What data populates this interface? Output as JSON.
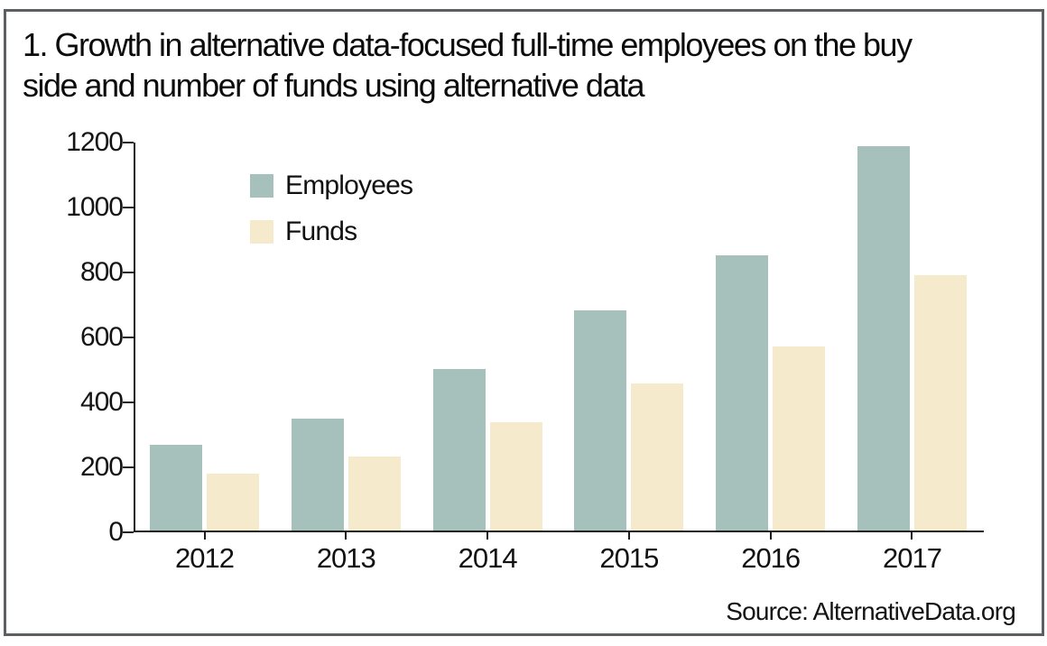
{
  "title": "1. Growth in alternative data-focused full-time employees on the buy side and number of funds using alternative data",
  "source": "Source: AlternativeData.org",
  "colors": {
    "employees": "#a6c1bb",
    "funds": "#f5ebcc",
    "frame_border": "#5b6063",
    "axis_line": "#1c1c1c"
  },
  "chart_data": {
    "type": "bar",
    "title": "1. Growth in alternative data-focused full-time employees on the buy side and number of funds using alternative data",
    "categories": [
      "2012",
      "2013",
      "2014",
      "2015",
      "2016",
      "2017"
    ],
    "series": [
      {
        "name": "Employees",
        "color": "#a6c1bb",
        "values": [
          265,
          345,
          500,
          680,
          850,
          1190
        ]
      },
      {
        "name": "Funds",
        "color": "#f5ebcc",
        "values": [
          175,
          230,
          335,
          455,
          570,
          790
        ]
      }
    ],
    "xlabel": "",
    "ylabel": "",
    "ylim": [
      0,
      1200
    ],
    "yticks": [
      0,
      200,
      400,
      600,
      800,
      1000,
      1200
    ],
    "grid": false,
    "legend_position": "inside-top-left"
  }
}
